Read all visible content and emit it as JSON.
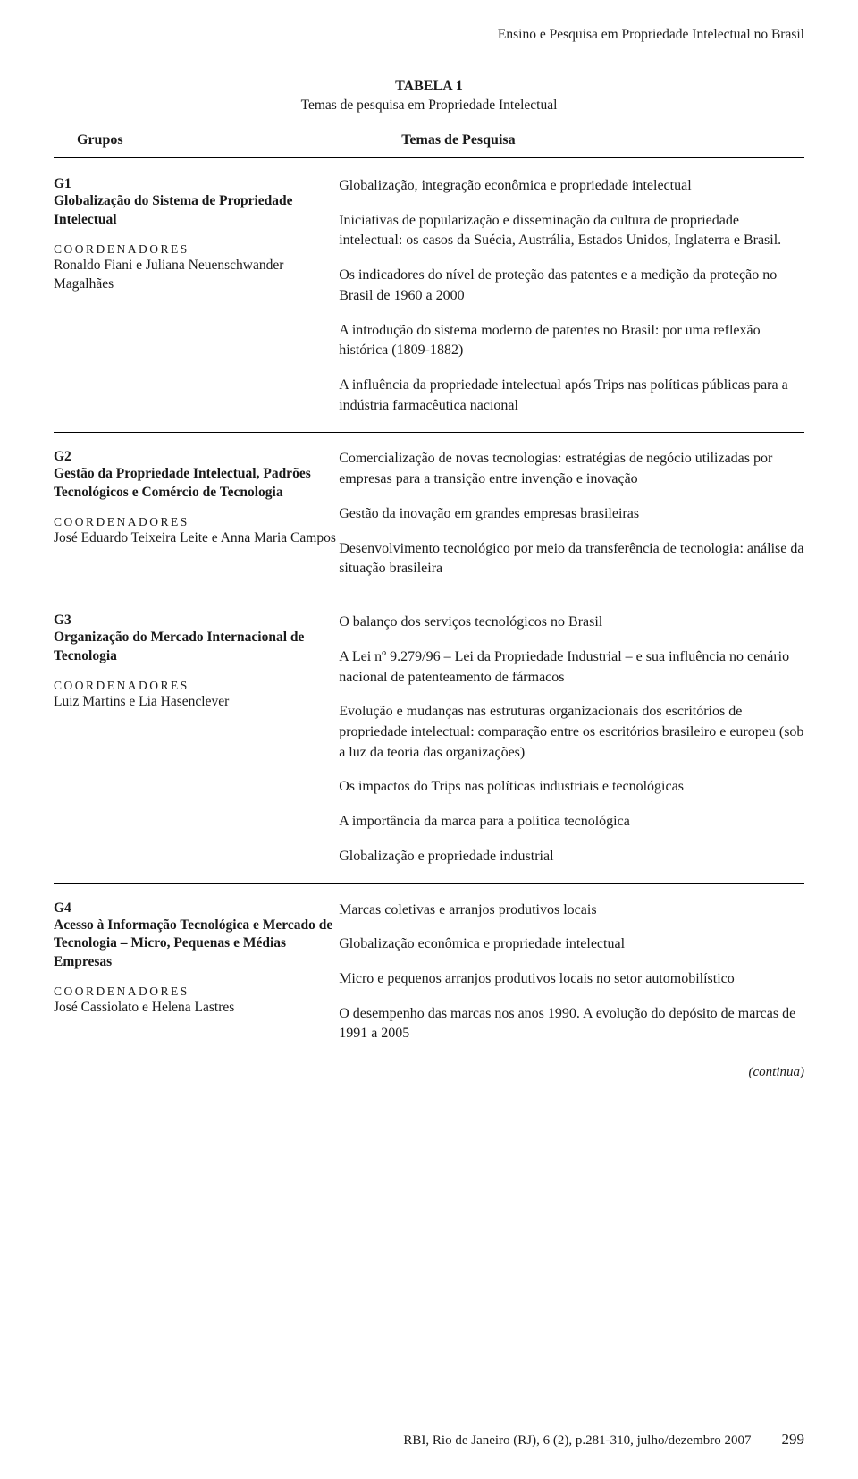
{
  "colors": {
    "text": "#1a1a1a",
    "background": "#ffffff",
    "rule": "#000000"
  },
  "fonts": {
    "body_pt": 16,
    "header_pt": 16,
    "coord_label_pt": 13.5,
    "running_header_pt": 15.5
  },
  "page": {
    "running_header": "Ensino e Pesquisa em Propriedade Intelectual no Brasil",
    "table_number": "TABELA 1",
    "table_title": "Temas de pesquisa em Propriedade Intelectual",
    "col_left": "Grupos",
    "col_right": "Temas de Pesquisa",
    "continua": "(continua)",
    "footer_citation": "RBI, Rio de Janeiro (RJ), 6 (2), p.281-310, julho/dezembro 2007",
    "footer_page": "299"
  },
  "groups": [
    {
      "code": "G1",
      "title": "Globalização do Sistema de Propriedade Intelectual",
      "coord_label": "COORDENADORES",
      "coord_names": "Ronaldo Fiani e Juliana Neuenschwander Magalhães",
      "topics": [
        "Globalização, integração econômica e propriedade intelectual",
        "Iniciativas de popularização e disseminação da cultura de propriedade intelectual: os casos da Suécia, Austrália, Estados Unidos, Inglaterra e Brasil.",
        "Os indicadores do nível de proteção das patentes e a medição da proteção no Brasil de 1960 a 2000",
        "A introdução do sistema moderno de patentes no Brasil: por uma reflexão histórica (1809-1882)",
        "A influência da propriedade intelectual após Trips nas políticas públicas para a indústria farmacêutica nacional"
      ]
    },
    {
      "code": "G2",
      "title": "Gestão da Propriedade Intelectual, Padrões Tecnológicos e Comércio de Tecnologia",
      "coord_label": "COORDENADORES",
      "coord_names": "José Eduardo Teixeira Leite e Anna Maria Campos",
      "topics": [
        "Comercialização de novas tecnologias: estratégias de negócio utilizadas por empresas para a transição entre invenção e inovação",
        "Gestão da inovação em grandes empresas brasileiras",
        "Desenvolvimento tecnológico por meio da transferência de tecnologia: análise da situação brasileira"
      ]
    },
    {
      "code": "G3",
      "title": "Organização do Mercado Internacional de Tecnologia",
      "coord_label": "COORDENADORES",
      "coord_names": "Luiz Martins e Lia Hasenclever",
      "topics": [
        "O balanço dos serviços tecnológicos no Brasil",
        "A Lei nº 9.279/96 – Lei da Propriedade Industrial – e sua influência no cenário nacional de patenteamento de fármacos",
        "Evolução e mudanças nas estruturas organizacionais dos escritórios de propriedade intelectual: comparação entre os escritórios brasileiro e europeu (sob a luz da teoria das organizações)",
        "Os impactos do Trips nas políticas industriais e tecnológicas",
        "A importância da marca para a política tecnológica",
        "Globalização e propriedade industrial"
      ]
    },
    {
      "code": "G4",
      "title": "Acesso à Informação Tecnológica e Mercado de Tecnologia – Micro, Pequenas e Médias Empresas",
      "coord_label": "COORDENADORES",
      "coord_names": "José Cassiolato e Helena Lastres",
      "topics": [
        "Marcas coletivas e arranjos produtivos locais",
        "Globalização econômica e propriedade intelectual",
        "Micro e pequenos arranjos produtivos locais no setor automobilístico",
        "O desempenho das marcas nos anos 1990. A evolução do depósito de marcas de 1991 a 2005"
      ]
    }
  ]
}
